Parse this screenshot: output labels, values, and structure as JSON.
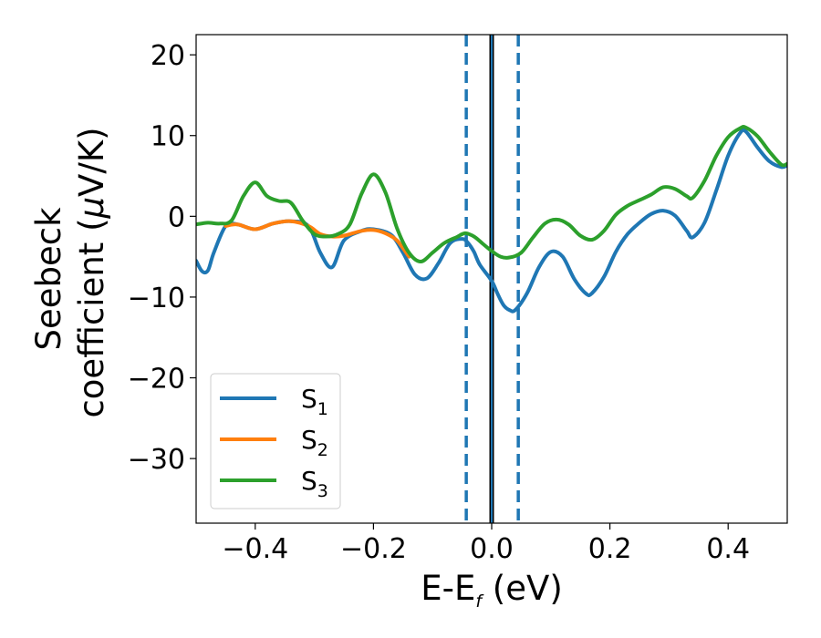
{
  "chart_data": {
    "type": "line",
    "xlabel": {
      "main": "E-E",
      "sub": "f",
      "suffix": " (eV)"
    },
    "ylabel": {
      "line1": "Seebeck",
      "line2_main": "coefficient  (",
      "line2_mu": "μ",
      "line2_end": "V/K)"
    },
    "xlim": [
      -0.5,
      0.5
    ],
    "ylim": [
      -38,
      22.5
    ],
    "x_ticks": [
      -0.4,
      -0.2,
      0.0,
      0.2,
      0.4
    ],
    "x_tick_labels": [
      "−0.4",
      "−0.2",
      "0.0",
      "0.2",
      "0.4"
    ],
    "y_ticks": [
      20,
      10,
      0,
      -10,
      -20,
      -30
    ],
    "y_tick_labels": [
      "20",
      "10",
      "0",
      "−10",
      "−20",
      "−30"
    ],
    "grid": false,
    "legend": {
      "position": "lower-left"
    },
    "vlines": [
      {
        "x": 0.0,
        "style": "solid",
        "color": "#000000"
      },
      {
        "x": 0.0,
        "style": "solid",
        "color": "#1f77b4"
      },
      {
        "x": -0.043,
        "style": "dashed",
        "color": "#1f77b4"
      },
      {
        "x": 0.045,
        "style": "dashed",
        "color": "#1f77b4"
      }
    ],
    "series": [
      {
        "name": "S",
        "sub": "1",
        "color": "#1f77b4",
        "x": [
          -0.5,
          -0.49,
          -0.48,
          -0.47,
          -0.45,
          -0.43,
          -0.4,
          -0.37,
          -0.34,
          -0.31,
          -0.29,
          -0.27,
          -0.25,
          -0.22,
          -0.2,
          -0.17,
          -0.15,
          -0.13,
          -0.11,
          -0.09,
          -0.07,
          -0.05,
          -0.04,
          -0.03,
          -0.02,
          0.0,
          0.01,
          0.02,
          0.03,
          0.04,
          0.06,
          0.08,
          0.1,
          0.12,
          0.14,
          0.16,
          0.17,
          0.19,
          0.21,
          0.23,
          0.25,
          0.27,
          0.29,
          0.31,
          0.33,
          0.34,
          0.36,
          0.38,
          0.4,
          0.42,
          0.43,
          0.45,
          0.47,
          0.49,
          0.5
        ],
        "y": [
          -5.5,
          -6.8,
          -6.7,
          -4.5,
          -1.2,
          -1.0,
          -1.6,
          -0.9,
          -0.6,
          -1.2,
          -4.5,
          -6.3,
          -3.0,
          -1.8,
          -1.6,
          -2.3,
          -4.5,
          -7.2,
          -7.7,
          -5.8,
          -3.3,
          -2.8,
          -3.3,
          -4.4,
          -6.0,
          -8.0,
          -9.6,
          -11.0,
          -11.6,
          -11.6,
          -9.5,
          -6.3,
          -4.4,
          -5.0,
          -7.8,
          -9.6,
          -9.5,
          -7.5,
          -4.4,
          -2.2,
          -0.8,
          0.3,
          0.7,
          0.1,
          -1.8,
          -2.6,
          -0.8,
          3.2,
          7.5,
          10.3,
          10.5,
          8.5,
          6.8,
          6.1,
          6.3
        ]
      },
      {
        "name": "S",
        "sub": "2",
        "color": "#ff7f0e",
        "x": [
          -0.45,
          -0.43,
          -0.4,
          -0.37,
          -0.34,
          -0.31,
          -0.29,
          -0.27,
          -0.25,
          -0.22,
          -0.2,
          -0.18,
          -0.16,
          -0.14
        ],
        "y": [
          -1.2,
          -1.0,
          -1.6,
          -0.9,
          -0.6,
          -1.2,
          -2.2,
          -2.5,
          -2.4,
          -1.8,
          -1.7,
          -2.1,
          -3.0,
          -5.0
        ]
      },
      {
        "name": "S",
        "sub": "3",
        "color": "#2ca02c",
        "x": [
          -0.5,
          -0.48,
          -0.46,
          -0.44,
          -0.42,
          -0.4,
          -0.38,
          -0.36,
          -0.34,
          -0.32,
          -0.3,
          -0.28,
          -0.26,
          -0.24,
          -0.22,
          -0.2,
          -0.18,
          -0.16,
          -0.14,
          -0.12,
          -0.1,
          -0.08,
          -0.06,
          -0.045,
          -0.03,
          -0.015,
          0.0,
          0.015,
          0.03,
          0.05,
          0.07,
          0.09,
          0.11,
          0.13,
          0.15,
          0.17,
          0.19,
          0.21,
          0.23,
          0.25,
          0.27,
          0.29,
          0.31,
          0.33,
          0.34,
          0.36,
          0.38,
          0.4,
          0.42,
          0.43,
          0.45,
          0.47,
          0.49,
          0.5
        ],
        "y": [
          -1.0,
          -0.8,
          -0.9,
          -0.5,
          2.5,
          4.2,
          2.5,
          1.9,
          1.7,
          -0.5,
          -2.2,
          -2.5,
          -2.2,
          -1.0,
          2.8,
          5.2,
          3.0,
          -1.5,
          -4.5,
          -5.6,
          -4.5,
          -3.3,
          -2.6,
          -2.1,
          -2.5,
          -3.4,
          -4.3,
          -5.0,
          -5.1,
          -4.5,
          -2.6,
          -0.9,
          -0.4,
          -1.0,
          -2.4,
          -2.9,
          -1.8,
          0.2,
          1.3,
          2.0,
          2.7,
          3.6,
          3.4,
          2.5,
          2.3,
          4.4,
          7.5,
          9.8,
          10.9,
          11.0,
          9.9,
          8.0,
          6.4,
          6.5
        ]
      }
    ]
  }
}
